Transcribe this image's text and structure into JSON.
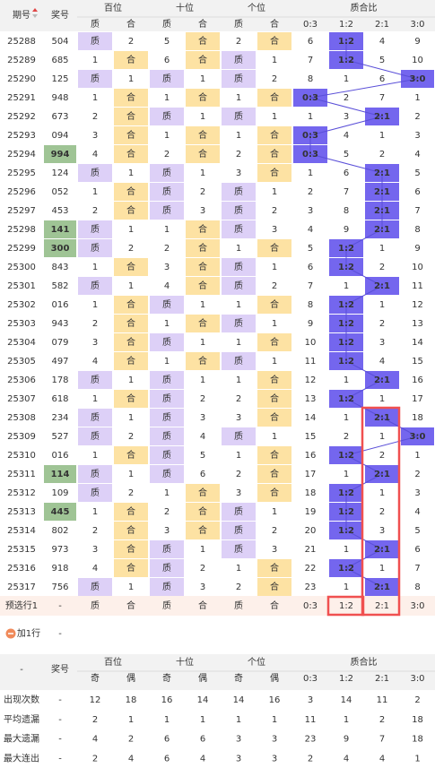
{
  "header": {
    "period": "期号",
    "number": "奖号",
    "groups": [
      "百位",
      "十位",
      "个位",
      "质合比"
    ],
    "sub": [
      "质",
      "合",
      "质",
      "合",
      "质",
      "合",
      "0:3",
      "1:2",
      "2:1",
      "3:0"
    ]
  },
  "rows": [
    [
      "25288",
      "504",
      "质",
      2,
      5,
      "合",
      2,
      "合",
      6,
      "1:2",
      4,
      9
    ],
    [
      "25289",
      "685",
      1,
      "合",
      6,
      "合",
      "质",
      1,
      7,
      "1:2",
      5,
      10
    ],
    [
      "25290",
      "125",
      "质",
      1,
      "质",
      1,
      "质",
      2,
      8,
      1,
      6,
      "3:0"
    ],
    [
      "25291",
      "948",
      1,
      "合",
      1,
      "合",
      1,
      "合",
      "0:3",
      2,
      7,
      1
    ],
    [
      "25292",
      "673",
      2,
      "合",
      "质",
      1,
      "质",
      1,
      1,
      3,
      "2:1",
      2
    ],
    [
      "25293",
      "094",
      3,
      "合",
      1,
      "合",
      1,
      "合",
      "0:3",
      4,
      1,
      3
    ],
    [
      "25294",
      "994",
      4,
      "合",
      2,
      "合",
      2,
      "合",
      "0:3",
      5,
      2,
      4
    ],
    [
      "25295",
      "124",
      "质",
      1,
      "质",
      1,
      3,
      "合",
      1,
      6,
      "2:1",
      5
    ],
    [
      "25296",
      "052",
      1,
      "合",
      "质",
      2,
      "质",
      1,
      2,
      7,
      "2:1",
      6
    ],
    [
      "25297",
      "453",
      2,
      "合",
      "质",
      3,
      "质",
      2,
      3,
      8,
      "2:1",
      7
    ],
    [
      "25298",
      "141",
      "质",
      1,
      1,
      "合",
      "质",
      3,
      4,
      9,
      "2:1",
      8
    ],
    [
      "25299",
      "300",
      "质",
      2,
      2,
      "合",
      1,
      "合",
      5,
      "1:2",
      1,
      9
    ],
    [
      "25300",
      "843",
      1,
      "合",
      3,
      "合",
      "质",
      1,
      6,
      "1:2",
      2,
      10
    ],
    [
      "25301",
      "582",
      "质",
      1,
      4,
      "合",
      "质",
      2,
      7,
      1,
      "2:1",
      11
    ],
    [
      "25302",
      "016",
      1,
      "合",
      "质",
      1,
      1,
      "合",
      8,
      "1:2",
      1,
      12
    ],
    [
      "25303",
      "943",
      2,
      "合",
      1,
      "合",
      "质",
      1,
      9,
      "1:2",
      2,
      13
    ],
    [
      "25304",
      "079",
      3,
      "合",
      "质",
      1,
      1,
      "合",
      10,
      "1:2",
      3,
      14
    ],
    [
      "25305",
      "497",
      4,
      "合",
      1,
      "合",
      "质",
      1,
      11,
      "1:2",
      4,
      15
    ],
    [
      "25306",
      "178",
      "质",
      1,
      "质",
      1,
      1,
      "合",
      12,
      1,
      "2:1",
      16
    ],
    [
      "25307",
      "618",
      1,
      "合",
      "质",
      2,
      2,
      "合",
      13,
      "1:2",
      1,
      17
    ],
    [
      "25308",
      "234",
      "质",
      1,
      "质",
      3,
      3,
      "合",
      14,
      1,
      "2:1",
      18
    ],
    [
      "25309",
      "527",
      "质",
      2,
      "质",
      4,
      "质",
      1,
      15,
      2,
      1,
      "3:0"
    ],
    [
      "25310",
      "016",
      1,
      "合",
      "质",
      5,
      1,
      "合",
      16,
      "1:2",
      2,
      1
    ],
    [
      "25311",
      "114",
      "质",
      1,
      "质",
      6,
      2,
      "合",
      17,
      1,
      "2:1",
      2
    ],
    [
      "25312",
      "109",
      "质",
      2,
      1,
      "合",
      3,
      "合",
      18,
      "1:2",
      1,
      3
    ],
    [
      "25313",
      "445",
      1,
      "合",
      2,
      "合",
      "质",
      1,
      19,
      "1:2",
      2,
      4
    ],
    [
      "25314",
      "802",
      2,
      "合",
      3,
      "合",
      "质",
      2,
      20,
      "1:2",
      3,
      5
    ],
    [
      "25315",
      "973",
      3,
      "合",
      "质",
      1,
      "质",
      3,
      21,
      1,
      "2:1",
      6
    ],
    [
      "25316",
      "918",
      4,
      "合",
      "质",
      2,
      1,
      "合",
      22,
      "1:2",
      1,
      7
    ],
    [
      "25317",
      "756",
      "质",
      1,
      "质",
      3,
      2,
      "合",
      23,
      1,
      "2:1",
      8
    ]
  ],
  "preselect": [
    "预选行1",
    "-",
    "质",
    "合",
    "质",
    "合",
    "质",
    "合",
    "0:3",
    "1:2",
    "2:1",
    "3:0"
  ],
  "add_row": {
    "label": "加1行",
    "number": "-"
  },
  "stats_header": {
    "label": "-",
    "number": "奖号",
    "groups": [
      "百位",
      "十位",
      "个位",
      "质合比"
    ],
    "sub": [
      "奇",
      "偶",
      "奇",
      "偶",
      "奇",
      "偶",
      "0:3",
      "1:2",
      "2:1",
      "3:0"
    ]
  },
  "stats": [
    [
      "出现次数",
      "-",
      12,
      18,
      16,
      14,
      14,
      16,
      3,
      14,
      11,
      2
    ],
    [
      "平均遗漏",
      "-",
      2,
      1,
      1,
      1,
      1,
      1,
      11,
      1,
      2,
      18
    ],
    [
      "最大遗漏",
      "-",
      4,
      2,
      6,
      6,
      3,
      3,
      23,
      9,
      7,
      18
    ],
    [
      "最大连出",
      "-",
      2,
      4,
      6,
      4,
      3,
      3,
      2,
      4,
      4,
      1
    ]
  ]
}
